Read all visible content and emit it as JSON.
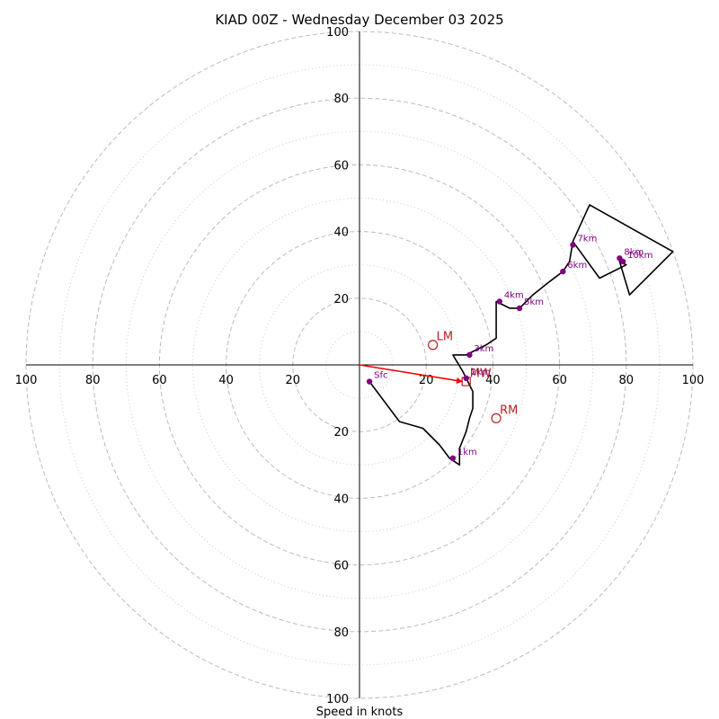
{
  "chart_data": {
    "type": "hodograph",
    "title": "KIAD 00Z - Wednesday December 03 2025",
    "xlabel": "Speed in knots",
    "range": [
      -100,
      100
    ],
    "ring_major": [
      20,
      40,
      60,
      80,
      100
    ],
    "ring_minor": [
      10,
      30,
      50,
      70,
      90
    ],
    "x_tick_labels": [
      "100",
      "80",
      "60",
      "40",
      "20",
      "20",
      "40",
      "60",
      "80",
      "100"
    ],
    "y_tick_labels": [
      "100",
      "80",
      "60",
      "40",
      "20",
      "20",
      "40",
      "60",
      "80",
      "100"
    ],
    "colors": {
      "trace": "#000000",
      "height_marker": "#800080",
      "motion": "#b22222",
      "bulk_shear_arrow": "#ff0000",
      "ring_major": "#bbbbbb",
      "ring_minor": "#cccccc"
    },
    "trace": [
      [
        3,
        -5
      ],
      [
        12,
        -17
      ],
      [
        19,
        -19
      ],
      [
        24,
        -24
      ],
      [
        27,
        -28
      ],
      [
        30,
        -30
      ],
      [
        30,
        -25
      ],
      [
        32,
        -20
      ],
      [
        33,
        -16
      ],
      [
        34,
        -13
      ],
      [
        34,
        -10
      ],
      [
        34,
        -8
      ],
      [
        33,
        -6
      ],
      [
        32,
        -4
      ],
      [
        31,
        -2
      ],
      [
        28,
        3
      ],
      [
        32,
        3
      ],
      [
        38,
        6
      ],
      [
        41,
        8
      ],
      [
        41,
        19
      ],
      [
        45,
        17
      ],
      [
        48,
        17
      ],
      [
        52,
        21
      ],
      [
        57,
        25
      ],
      [
        61,
        28
      ],
      [
        63,
        31
      ],
      [
        64,
        37
      ],
      [
        69,
        48
      ],
      [
        85,
        39
      ],
      [
        94,
        34
      ],
      [
        81,
        21
      ],
      [
        78,
        31
      ],
      [
        80,
        30
      ],
      [
        72,
        26
      ],
      [
        64,
        37
      ]
    ],
    "height_markers": [
      {
        "label": "Sfc",
        "u": 3,
        "v": -5
      },
      {
        "label": "1km",
        "u": 28,
        "v": -28
      },
      {
        "label": "2km",
        "u": 32,
        "v": -4
      },
      {
        "label": "3km",
        "u": 33,
        "v": 3
      },
      {
        "label": "4km",
        "u": 42,
        "v": 19
      },
      {
        "label": "5km",
        "u": 48,
        "v": 17
      },
      {
        "label": "6km",
        "u": 61,
        "v": 28
      },
      {
        "label": "7km",
        "u": 64,
        "v": 36
      },
      {
        "label": "8km",
        "u": 78,
        "v": 32
      },
      {
        "label": "10km",
        "u": 79,
        "v": 31
      }
    ],
    "storm_motions": [
      {
        "label": "LM",
        "u": 22,
        "v": 6,
        "shape": "circle"
      },
      {
        "label": "RM",
        "u": 41,
        "v": -16,
        "shape": "circle"
      },
      {
        "label": "MW",
        "u": 32,
        "v": -5,
        "shape": "square"
      }
    ],
    "bulk_shear_arrow": {
      "from": [
        0,
        0
      ],
      "to": [
        31,
        -5
      ]
    }
  }
}
